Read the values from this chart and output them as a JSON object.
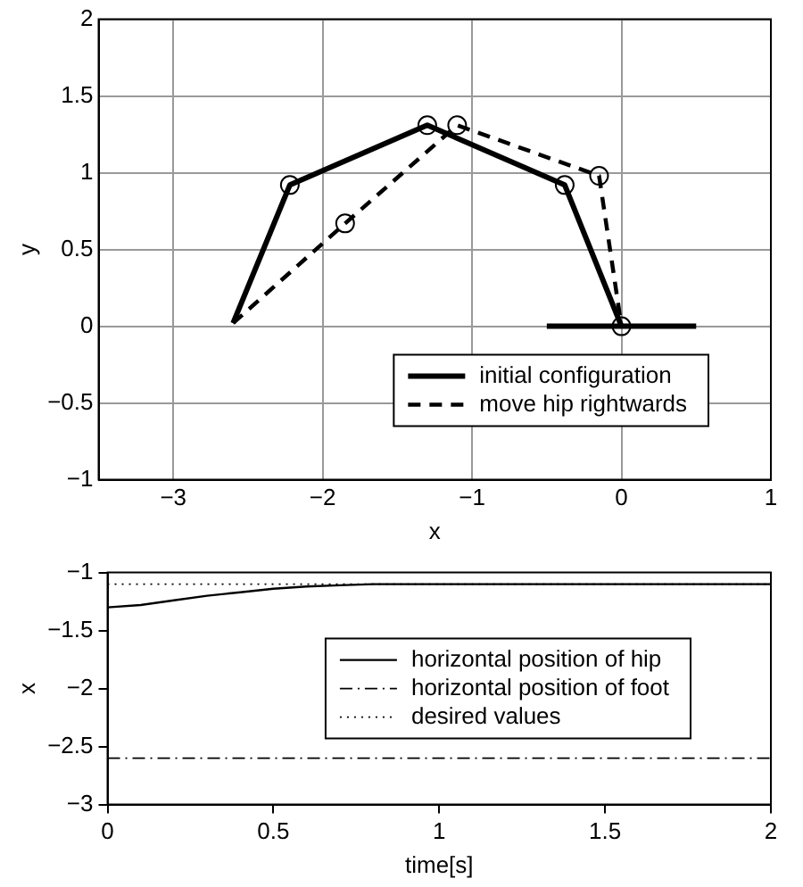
{
  "chart_data": [
    {
      "type": "line",
      "xlabel": "x",
      "ylabel": "y",
      "xlim": [
        -3.5,
        1
      ],
      "ylim": [
        -1,
        2
      ],
      "xticks": [
        -3,
        -2,
        -1,
        0,
        1
      ],
      "yticks": [
        -1,
        -0.5,
        0,
        0.5,
        1,
        1.5,
        2
      ],
      "grid": true,
      "legend": "bottom right",
      "series": [
        {
          "name": "initial configuration",
          "color": "#000000",
          "line_style": "solid",
          "x": [
            -2.6,
            -2.22,
            -1.3,
            -0.38,
            0
          ],
          "values": [
            0.02,
            0.92,
            1.31,
            0.92,
            0
          ]
        },
        {
          "name": "move hip rightwards",
          "color": "#000000",
          "line_style": "dashed",
          "x": [
            -2.6,
            -1.85,
            -1.1,
            -0.15,
            0
          ],
          "values": [
            0.02,
            0.67,
            1.31,
            0.98,
            0
          ]
        },
        {
          "color": "#000000",
          "line_style": "solid",
          "x": [
            -0.5,
            0.5
          ],
          "values": [
            0,
            0
          ]
        },
        {
          "type": "scatter",
          "marker": "circle",
          "color": "#000000",
          "x": [
            -2.22,
            -1.85,
            -1.3,
            -1.1,
            -0.38,
            -0.15,
            0
          ],
          "values": [
            0.92,
            0.67,
            1.31,
            1.31,
            0.92,
            0.98,
            0
          ]
        }
      ]
    },
    {
      "type": "line",
      "xlabel": "time[s]",
      "ylabel": "x",
      "xlim": [
        0,
        2
      ],
      "ylim": [
        -3,
        -1
      ],
      "xticks": [
        0,
        0.5,
        1,
        1.5,
        2
      ],
      "yticks": [
        -3,
        -2.5,
        -2,
        -1.5,
        -1
      ],
      "legend": "right",
      "series": [
        {
          "name": "horizontal position of hip",
          "color": "#000000",
          "line_style": "solid",
          "x": [
            0,
            0.1,
            0.2,
            0.3,
            0.4,
            0.5,
            0.6,
            0.7,
            0.8,
            0.9,
            1,
            1.5,
            2
          ],
          "values": [
            -1.3,
            -1.28,
            -1.24,
            -1.2,
            -1.17,
            -1.14,
            -1.12,
            -1.11,
            -1.1,
            -1.1,
            -1.1,
            -1.1,
            -1.1
          ]
        },
        {
          "name": "horizontal position of foot",
          "color": "#000000",
          "line_style": "dashdot",
          "x": [
            0,
            2
          ],
          "values": [
            -2.6,
            -2.6
          ]
        },
        {
          "name": "desired values",
          "color": "#000000",
          "line_style": "dotted",
          "x": [
            0,
            2
          ],
          "values": [
            -1.1,
            -1.1
          ]
        }
      ]
    }
  ]
}
